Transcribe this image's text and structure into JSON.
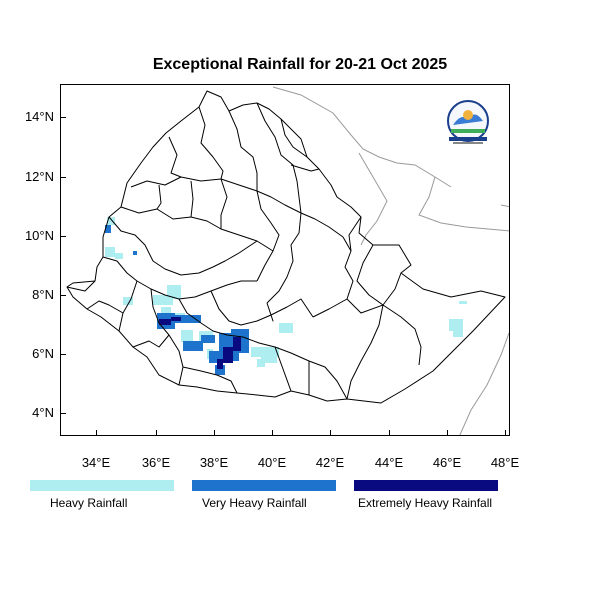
{
  "title": "Exceptional Rainfall for 20-21 Oct 2025",
  "axes": {
    "y_ticks": [
      {
        "label": "14°N"
      },
      {
        "label": "12°N"
      },
      {
        "label": "10°N"
      },
      {
        "label": "8°N"
      },
      {
        "label": "6°N"
      },
      {
        "label": "4°N"
      }
    ],
    "x_ticks": [
      {
        "label": "34°E"
      },
      {
        "label": "36°E"
      },
      {
        "label": "38°E"
      },
      {
        "label": "40°E"
      },
      {
        "label": "42°E"
      },
      {
        "label": "44°E"
      },
      {
        "label": "46°E"
      },
      {
        "label": "48°E"
      }
    ]
  },
  "legend": [
    {
      "label": "Heavy Rainfall",
      "color": "#aeeef0"
    },
    {
      "label": "Very Heavy Rainfall",
      "color": "#1e73cc"
    },
    {
      "label": "Extremely Heavy Rainfall",
      "color": "#0a0a80"
    }
  ],
  "colors": {
    "heavy": "#aeeef0",
    "very_heavy": "#1e73cc",
    "extreme": "#0a0a80",
    "borders": "#000000",
    "neighbor_borders": "#9a9a9a"
  },
  "logo": {
    "icon": "national-meteorology-agency-logo"
  }
}
